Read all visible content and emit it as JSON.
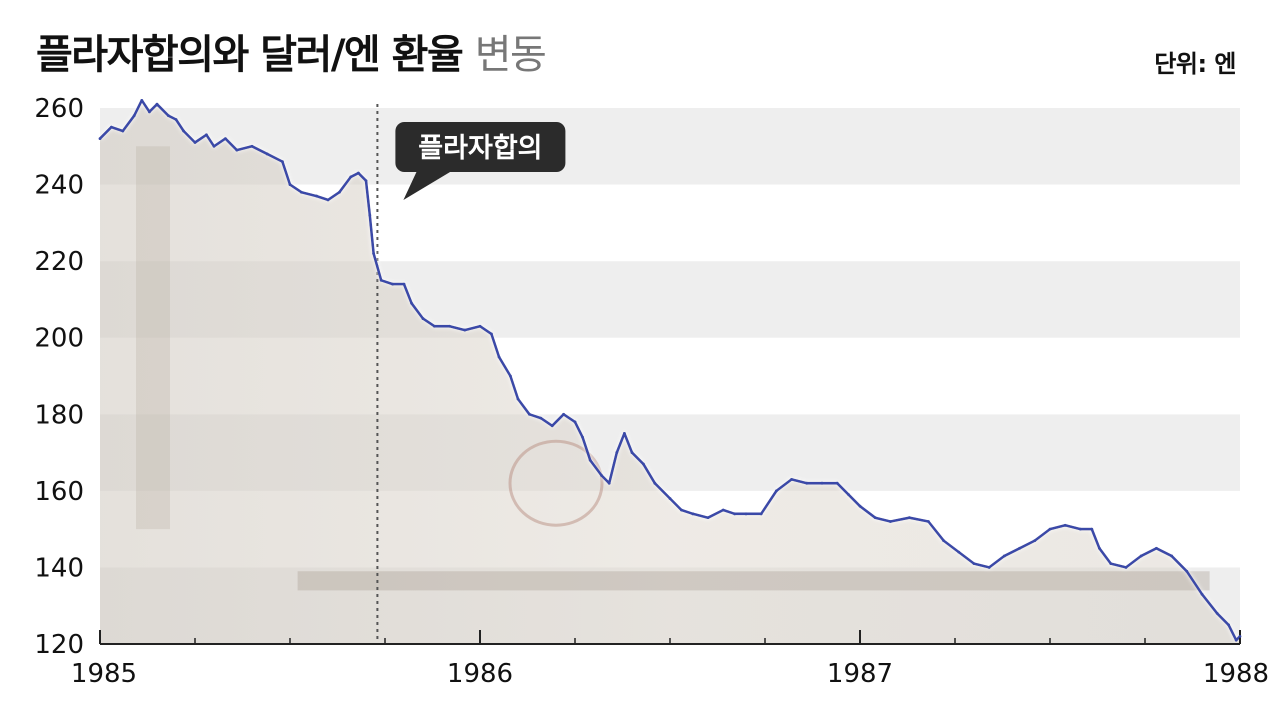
{
  "header": {
    "title_bold": "플라자합의와 달러/엔 환율",
    "title_light": "변동",
    "unit": "단위: 엔"
  },
  "chart_data": {
    "type": "line",
    "title": "플라자합의와 달러/엔 환율 변동",
    "unit_label": "단위: 엔",
    "x_ticks": [
      "1985",
      "1986",
      "1987",
      "1988"
    ],
    "x_range": [
      1985.0,
      1988.0
    ],
    "ylim": [
      120,
      260
    ],
    "y_ticks": [
      120,
      140,
      160,
      180,
      200,
      220,
      240,
      260
    ],
    "grid": "alternating horizontal bands",
    "line_color": "#3a4aa8",
    "annotation": {
      "text": "플라자합의",
      "x": 1985.73
    },
    "series": [
      {
        "values": [
          [
            1985.0,
            252
          ],
          [
            1985.03,
            255
          ],
          [
            1985.06,
            254
          ],
          [
            1985.09,
            258
          ],
          [
            1985.11,
            262
          ],
          [
            1985.13,
            259
          ],
          [
            1985.15,
            261
          ],
          [
            1985.18,
            258
          ],
          [
            1985.2,
            257
          ],
          [
            1985.22,
            254
          ],
          [
            1985.25,
            251
          ],
          [
            1985.28,
            253
          ],
          [
            1985.3,
            250
          ],
          [
            1985.33,
            252
          ],
          [
            1985.36,
            249
          ],
          [
            1985.4,
            250
          ],
          [
            1985.44,
            248
          ],
          [
            1985.48,
            246
          ],
          [
            1985.5,
            240
          ],
          [
            1985.53,
            238
          ],
          [
            1985.57,
            237
          ],
          [
            1985.6,
            236
          ],
          [
            1985.63,
            238
          ],
          [
            1985.66,
            242
          ],
          [
            1985.68,
            243
          ],
          [
            1985.7,
            241
          ],
          [
            1985.71,
            232
          ],
          [
            1985.72,
            222
          ],
          [
            1985.74,
            215
          ],
          [
            1985.77,
            214
          ],
          [
            1985.8,
            214
          ],
          [
            1985.82,
            209
          ],
          [
            1985.85,
            205
          ],
          [
            1985.88,
            203
          ],
          [
            1985.92,
            203
          ],
          [
            1985.96,
            202
          ],
          [
            1986.0,
            203
          ],
          [
            1986.03,
            201
          ],
          [
            1986.05,
            195
          ],
          [
            1986.08,
            190
          ],
          [
            1986.1,
            184
          ],
          [
            1986.13,
            180
          ],
          [
            1986.16,
            179
          ],
          [
            1986.19,
            177
          ],
          [
            1986.22,
            180
          ],
          [
            1986.25,
            178
          ],
          [
            1986.27,
            174
          ],
          [
            1986.29,
            168
          ],
          [
            1986.32,
            164
          ],
          [
            1986.34,
            162
          ],
          [
            1986.36,
            170
          ],
          [
            1986.38,
            175
          ],
          [
            1986.4,
            170
          ],
          [
            1986.43,
            167
          ],
          [
            1986.46,
            162
          ],
          [
            1986.5,
            158
          ],
          [
            1986.53,
            155
          ],
          [
            1986.56,
            154
          ],
          [
            1986.6,
            153
          ],
          [
            1986.64,
            155
          ],
          [
            1986.67,
            154
          ],
          [
            1986.7,
            154
          ],
          [
            1986.74,
            154
          ],
          [
            1986.78,
            160
          ],
          [
            1986.82,
            163
          ],
          [
            1986.86,
            162
          ],
          [
            1986.9,
            162
          ],
          [
            1986.94,
            162
          ],
          [
            1986.97,
            159
          ],
          [
            1987.0,
            156
          ],
          [
            1987.04,
            153
          ],
          [
            1987.08,
            152
          ],
          [
            1987.13,
            153
          ],
          [
            1987.18,
            152
          ],
          [
            1987.22,
            147
          ],
          [
            1987.26,
            144
          ],
          [
            1987.3,
            141
          ],
          [
            1987.34,
            140
          ],
          [
            1987.38,
            143
          ],
          [
            1987.42,
            145
          ],
          [
            1987.46,
            147
          ],
          [
            1987.5,
            150
          ],
          [
            1987.54,
            151
          ],
          [
            1987.58,
            150
          ],
          [
            1987.61,
            150
          ],
          [
            1987.63,
            145
          ],
          [
            1987.66,
            141
          ],
          [
            1987.7,
            140
          ],
          [
            1987.74,
            143
          ],
          [
            1987.78,
            145
          ],
          [
            1987.82,
            143
          ],
          [
            1987.86,
            139
          ],
          [
            1987.9,
            133
          ],
          [
            1987.94,
            128
          ],
          [
            1987.97,
            125
          ],
          [
            1987.99,
            121
          ],
          [
            1988.0,
            122
          ]
        ]
      }
    ]
  }
}
